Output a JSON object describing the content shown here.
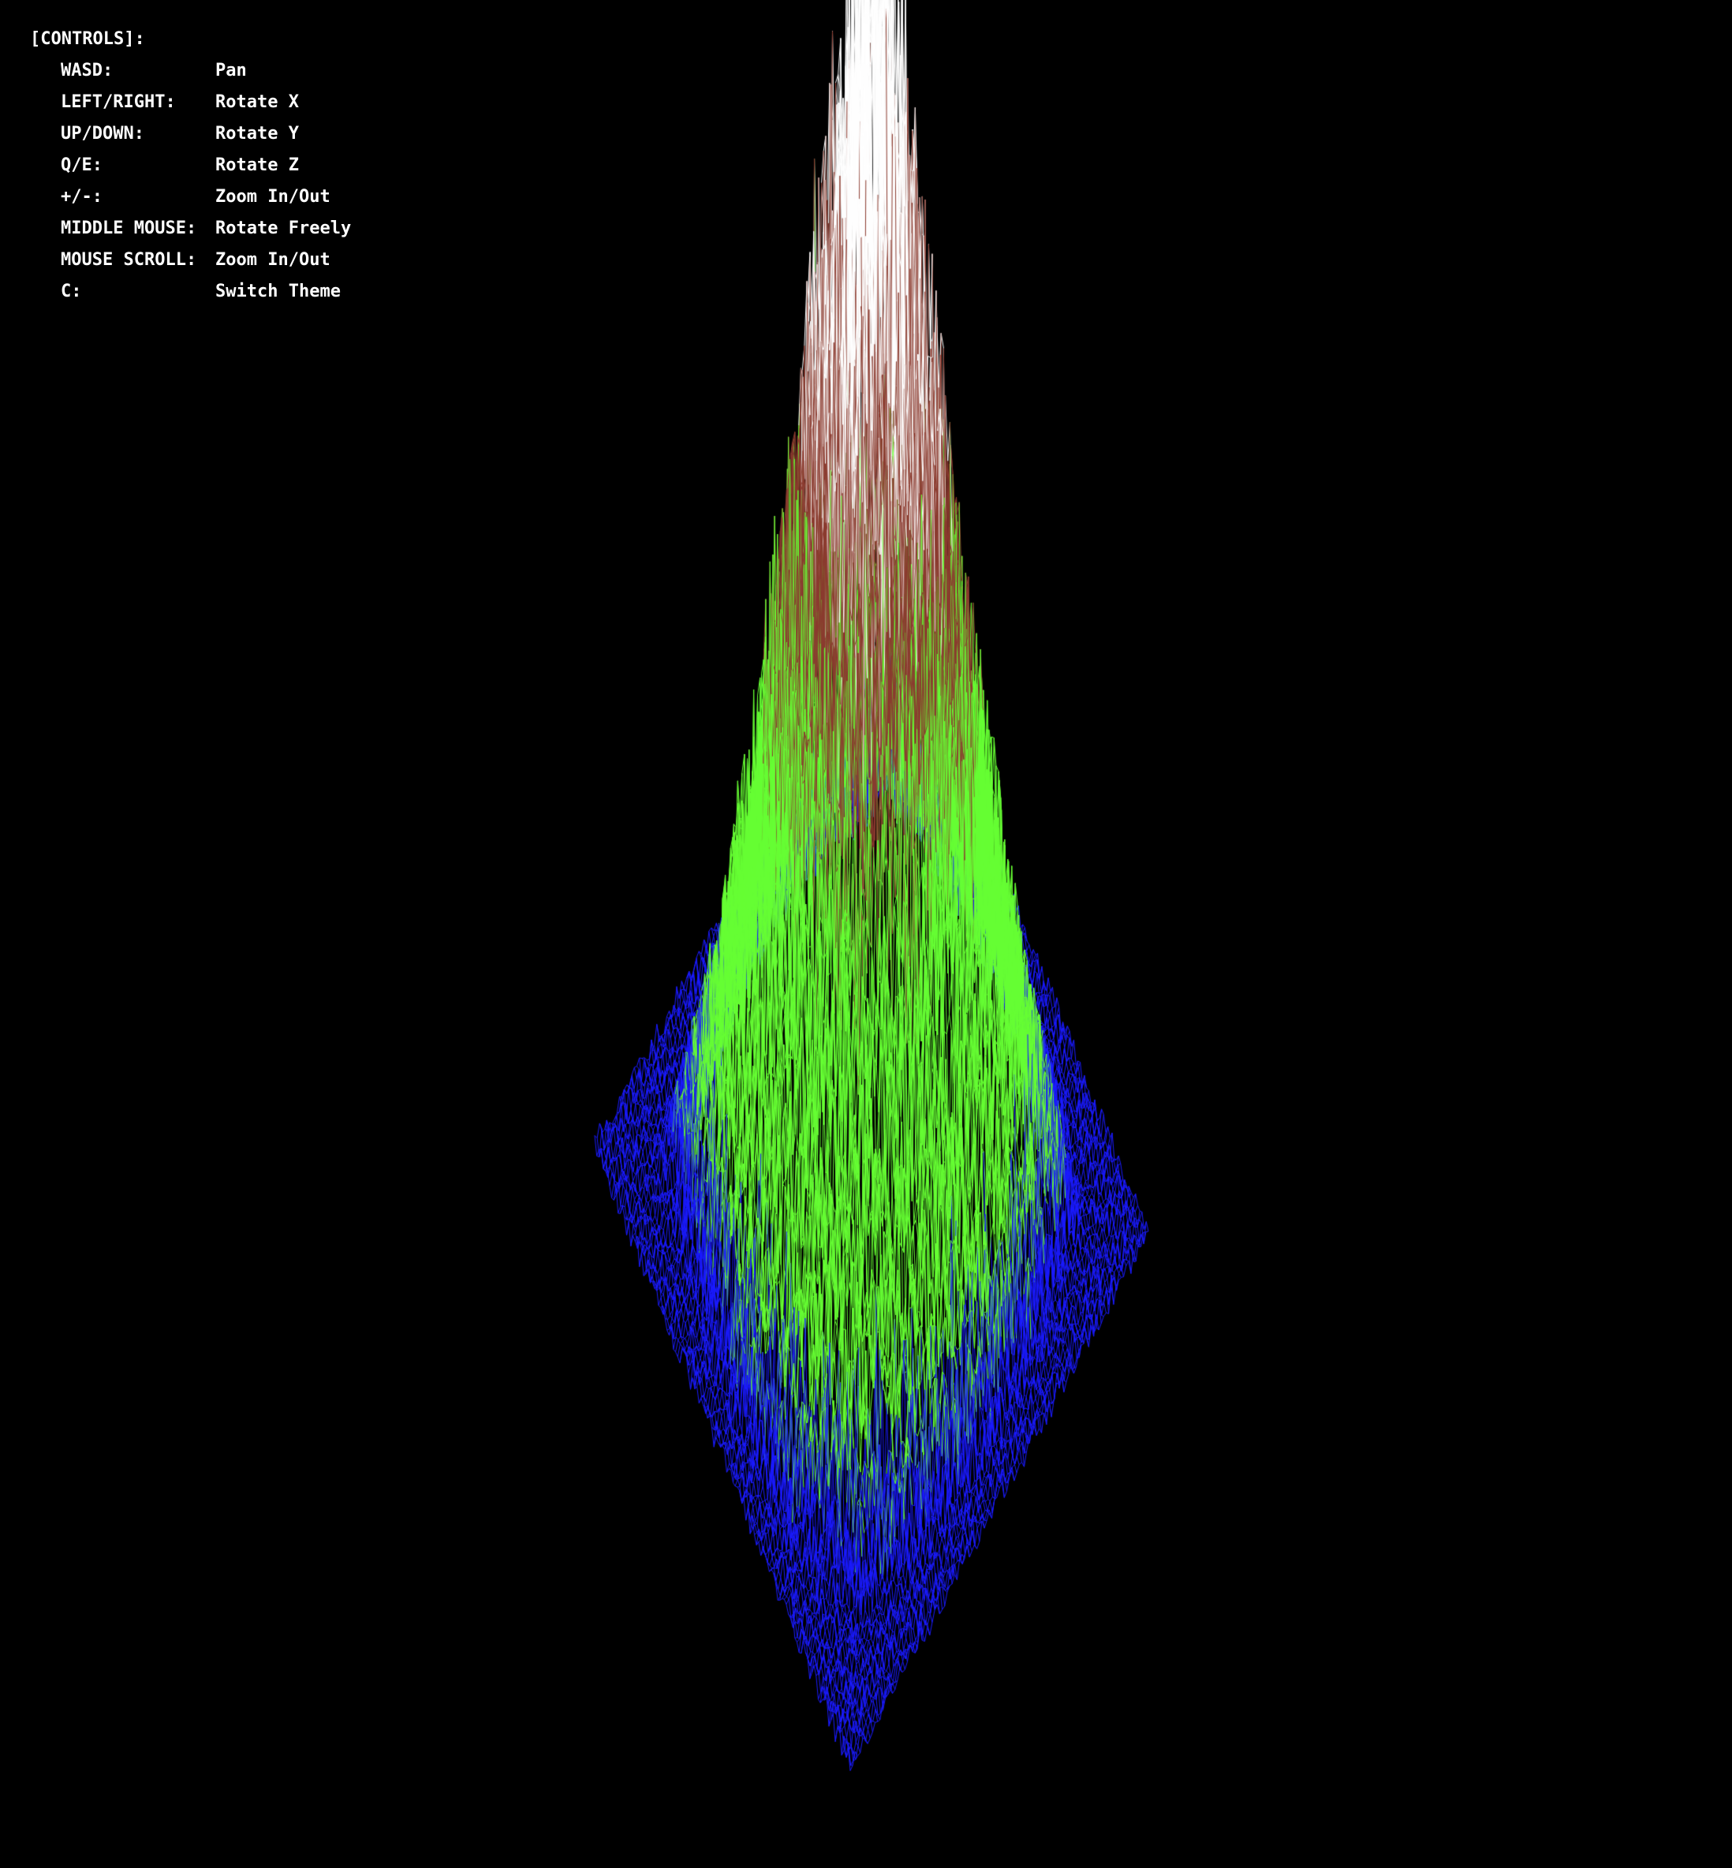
{
  "overlay": {
    "title": "[CONTROLS]:",
    "controls": [
      {
        "key": "WASD:",
        "action": "Pan"
      },
      {
        "key": "LEFT/RIGHT:",
        "action": "Rotate X"
      },
      {
        "key": "UP/DOWN:",
        "action": "Rotate Y"
      },
      {
        "key": "Q/E:",
        "action": "Rotate Z"
      },
      {
        "key": "+/-:",
        "action": "Zoom In/Out"
      },
      {
        "key": "MIDDLE MOUSE:",
        "action": "Rotate Freely"
      },
      {
        "key": "MOUSE SCROLL:",
        "action": "Zoom In/Out"
      },
      {
        "key": "C:",
        "action": "Switch Theme"
      }
    ],
    "text_color": "#ffffff"
  },
  "scene": {
    "background": "#000000",
    "render_style": "wireframe",
    "height_bands": [
      {
        "name": "water",
        "color": "#1a1aff"
      },
      {
        "name": "grass",
        "color": "#66ff33"
      },
      {
        "name": "rock",
        "color": "#8b3a2e"
      },
      {
        "name": "snow",
        "color": "#ffffff"
      }
    ]
  }
}
